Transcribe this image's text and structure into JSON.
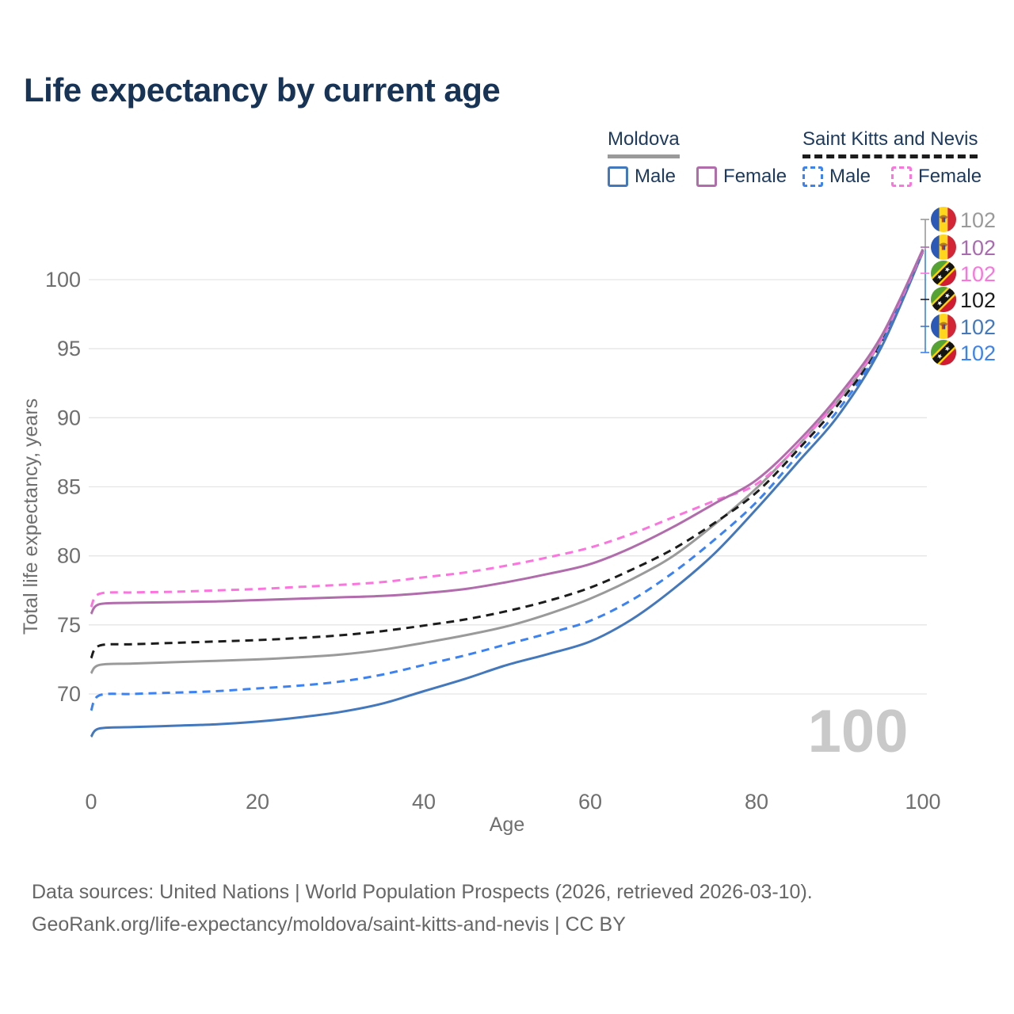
{
  "page": {
    "title": "Life expectancy by current age"
  },
  "legend": {
    "groups": [
      {
        "label": "Moldova",
        "line_style": "solid",
        "underline_color": "#9a9a9a",
        "items": [
          {
            "label": "Male",
            "color": "#4478bd",
            "dash": false
          },
          {
            "label": "Female",
            "color": "#b16cab",
            "dash": false
          }
        ]
      },
      {
        "label": "Saint Kitts and Nevis",
        "line_style": "dashed",
        "underline_color": "#1c1c1c",
        "items": [
          {
            "label": "Male",
            "color": "#3b82f4",
            "dash": true
          },
          {
            "label": "Female",
            "color": "#fd74de",
            "dash": true
          }
        ]
      }
    ]
  },
  "chart_data": {
    "type": "line",
    "title": "Life expectancy by current age",
    "xlabel": "Age",
    "ylabel": "Total life expectancy, years",
    "xlim": [
      0,
      100
    ],
    "ylim": [
      66,
      103
    ],
    "x_ticks": [
      0,
      20,
      40,
      60,
      80,
      100
    ],
    "y_ticks": [
      70,
      75,
      80,
      85,
      90,
      95,
      100
    ],
    "grid": "horizontal",
    "grid_color": "#e5e5e5",
    "axis_text_color": "#6f6f6f",
    "watermark": "100",
    "ages": [
      0,
      1,
      5,
      10,
      15,
      20,
      25,
      30,
      35,
      40,
      45,
      50,
      55,
      60,
      65,
      70,
      75,
      80,
      85,
      90,
      95,
      100
    ],
    "series": [
      {
        "id": "moldova-all",
        "country": "Moldova",
        "sex": "both",
        "color": "#9a9a9a",
        "dash": false,
        "end_label": "102",
        "values": [
          71.5,
          72.1,
          72.2,
          72.3,
          72.4,
          72.5,
          72.65,
          72.85,
          73.2,
          73.7,
          74.25,
          74.9,
          75.8,
          76.9,
          78.3,
          80.0,
          82.3,
          84.9,
          88.0,
          91.4,
          95.6,
          102.2
        ]
      },
      {
        "id": "saint-kitts-all",
        "country": "Saint Kitts and Nevis",
        "sex": "both",
        "color": "#1c1c1c",
        "dash": true,
        "end_label": "102",
        "values": [
          72.6,
          73.5,
          73.6,
          73.7,
          73.8,
          73.9,
          74.05,
          74.25,
          74.55,
          74.95,
          75.4,
          76.0,
          76.75,
          77.7,
          79.0,
          80.5,
          82.4,
          84.6,
          87.7,
          91.1,
          95.4,
          102.1
        ]
      },
      {
        "id": "saint-kitts-male",
        "country": "Saint Kitts and Nevis",
        "sex": "male",
        "color": "#3b82f4",
        "dash": true,
        "end_label": "102",
        "values": [
          68.8,
          69.9,
          70.0,
          70.1,
          70.2,
          70.4,
          70.6,
          70.9,
          71.4,
          72.1,
          72.8,
          73.6,
          74.4,
          75.3,
          76.8,
          78.8,
          81.2,
          83.9,
          87.3,
          90.7,
          95.3,
          102.1
        ]
      },
      {
        "id": "moldova-male",
        "country": "Moldova",
        "sex": "male",
        "color": "#4478bd",
        "dash": false,
        "end_label": "102",
        "values": [
          66.9,
          67.5,
          67.6,
          67.7,
          67.8,
          68.0,
          68.3,
          68.7,
          69.3,
          70.2,
          71.1,
          72.1,
          72.9,
          73.8,
          75.4,
          77.6,
          80.2,
          83.4,
          86.8,
          90.3,
          95.1,
          102.0
        ]
      },
      {
        "id": "saint-kitts-female",
        "country": "Saint Kitts and Nevis",
        "sex": "female",
        "color": "#fd74de",
        "dash": true,
        "end_label": "102",
        "values": [
          76.3,
          77.25,
          77.35,
          77.4,
          77.5,
          77.6,
          77.75,
          77.9,
          78.1,
          78.45,
          78.8,
          79.3,
          79.9,
          80.6,
          81.6,
          82.8,
          84.0,
          85.2,
          88.0,
          91.5,
          95.7,
          102.1
        ]
      },
      {
        "id": "moldova-female",
        "country": "Moldova",
        "sex": "female",
        "color": "#b16cab",
        "dash": false,
        "end_label": "102",
        "values": [
          75.8,
          76.5,
          76.6,
          76.65,
          76.7,
          76.8,
          76.9,
          77.0,
          77.1,
          77.3,
          77.6,
          78.1,
          78.7,
          79.4,
          80.6,
          82.1,
          83.8,
          85.5,
          88.3,
          91.7,
          95.9,
          102.2
        ]
      }
    ],
    "end_labels": [
      {
        "flag": "md",
        "value": "102",
        "color": "#9a9a9a"
      },
      {
        "flag": "md",
        "value": "102",
        "color": "#a96bb0"
      },
      {
        "flag": "kn",
        "value": "102",
        "color": "#fd74de"
      },
      {
        "flag": "kn",
        "value": "102",
        "color": "#1c1c1c"
      },
      {
        "flag": "md",
        "value": "102",
        "color": "#4478bd"
      },
      {
        "flag": "kn",
        "value": "102",
        "color": "#3b82f4"
      }
    ]
  },
  "footer": {
    "line1": "Data sources: United Nations | World Population Prospects (2026, retrieved 2026-03-10).",
    "line2": "GeoRank.org/life-expectancy/moldova/saint-kitts-and-nevis | CC BY"
  }
}
